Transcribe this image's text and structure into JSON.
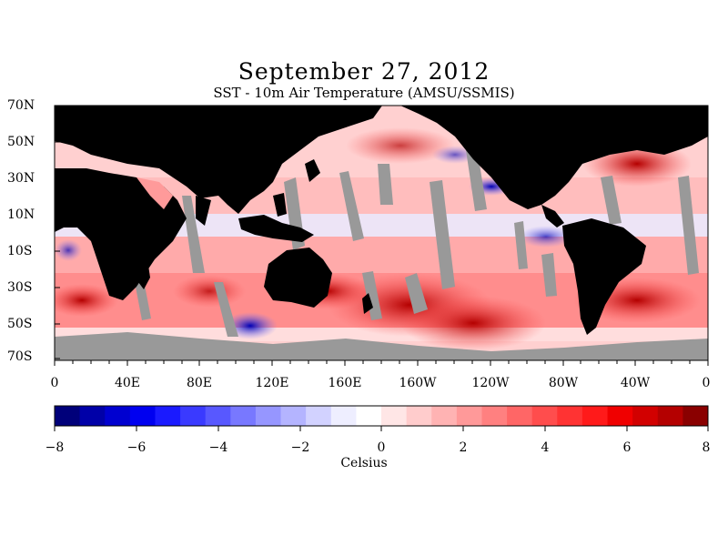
{
  "title": "September 27, 2012",
  "subtitle": "SST - 10m Air Temperature (AMSU/SSMIS)",
  "latitude_labels": [
    "70N",
    "50N",
    "30N",
    "10N",
    "10S",
    "30S",
    "50S",
    "70S"
  ],
  "longitude_labels": [
    "0",
    "40E",
    "80E",
    "120E",
    "160E",
    "160W",
    "120W",
    "80W",
    "40W",
    "0"
  ],
  "colorbar": {
    "tick_labels": [
      "−8",
      "−6",
      "−4",
      "−2",
      "0",
      "2",
      "4",
      "6",
      "8"
    ],
    "unit_label": "Celsius",
    "min": -8,
    "max": 8,
    "colors": [
      "#00007a",
      "#0000a8",
      "#0000d0",
      "#0000f0",
      "#1a1aff",
      "#3a3aff",
      "#5858ff",
      "#7878ff",
      "#9696ff",
      "#b4b4ff",
      "#d2d2ff",
      "#eeeeff",
      "#ffffff",
      "#ffe6e6",
      "#ffcccc",
      "#ffb3b3",
      "#ff9999",
      "#ff8080",
      "#ff6666",
      "#ff4d4d",
      "#ff3333",
      "#ff1a1a",
      "#f00000",
      "#d20000",
      "#b40000",
      "#8a0000"
    ]
  },
  "legend_colors": {
    "land": "#000000",
    "missing": "#999999"
  }
}
